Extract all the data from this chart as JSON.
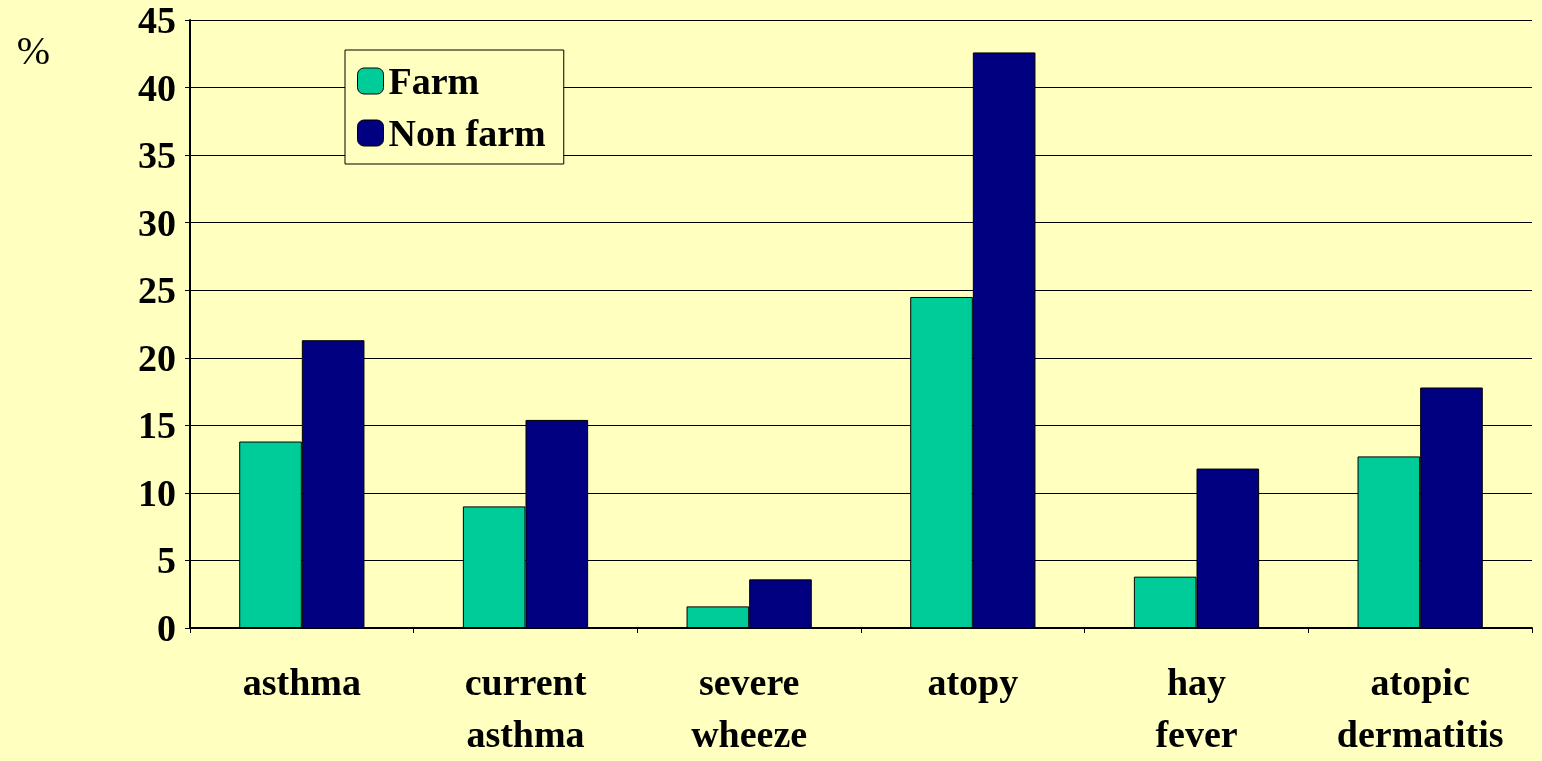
{
  "chart_data": {
    "type": "bar",
    "ylabel": "%",
    "categories": [
      "asthma",
      "current asthma",
      "severe wheeze",
      "atopy",
      "hay fever",
      "atopic dermatitis"
    ],
    "series": [
      {
        "name": "Farm",
        "color": "#00cc99",
        "values": [
          13.8,
          9.0,
          1.6,
          24.5,
          3.8,
          12.7
        ]
      },
      {
        "name": "Non farm",
        "color": "#000080",
        "values": [
          21.3,
          15.4,
          3.6,
          42.6,
          11.8,
          17.8
        ]
      }
    ],
    "ylim": [
      0,
      45
    ],
    "yticks": [
      0,
      5,
      10,
      15,
      20,
      25,
      30,
      35,
      40,
      45
    ],
    "grid": "y",
    "legend": "top left"
  }
}
